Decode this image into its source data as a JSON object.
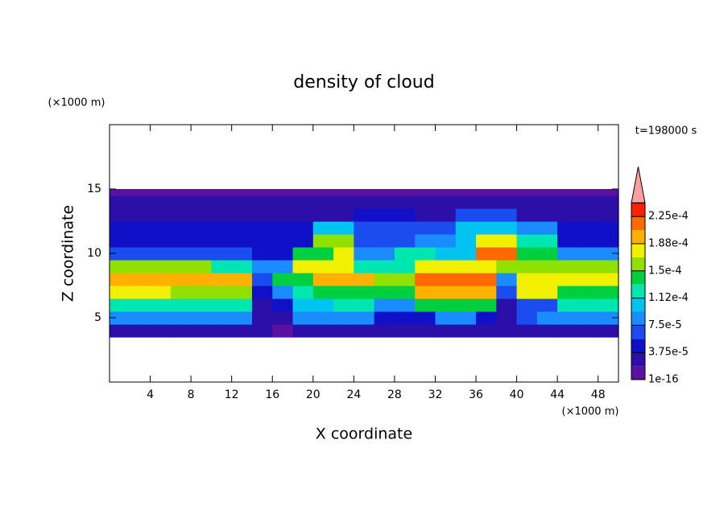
{
  "chart_data": {
    "type": "contour",
    "title": "density of cloud",
    "xlabel": "X coordinate",
    "ylabel": "Z coordinate",
    "xunit": "(×1000 m)",
    "yunit": "(×1000 m)",
    "time_label": "t=198000 s",
    "xlim": [
      0,
      50
    ],
    "ylim": [
      0,
      20
    ],
    "xticks": [
      4,
      8,
      12,
      16,
      20,
      24,
      28,
      32,
      36,
      40,
      44,
      48
    ],
    "yticks": [
      5,
      10,
      15
    ],
    "x": [
      0,
      2,
      4,
      6,
      8,
      10,
      12,
      14,
      16,
      18,
      20,
      22,
      24,
      26,
      28,
      30,
      32,
      34,
      36,
      38,
      40,
      42,
      44,
      46,
      48,
      50
    ],
    "z": [
      3.5,
      4.5,
      5.5,
      6.5,
      7.5,
      8.5,
      9.5,
      10.5,
      11.5,
      12.5,
      13.5,
      14.5,
      15
    ],
    "values": [
      [
        3e-05,
        3e-05,
        3e-05,
        3e-05,
        3e-05,
        3e-05,
        3e-05,
        2e-05,
        1e-05,
        2e-05,
        2e-05,
        2e-05,
        2e-05,
        2e-05,
        2e-05,
        3e-05,
        3e-05,
        3e-05,
        3e-05,
        2e-05,
        3e-05,
        3e-05,
        3e-05,
        3e-05,
        3e-05
      ],
      [
        9e-05,
        9e-05,
        9e-05,
        9e-05,
        9e-05,
        9e-05,
        9e-05,
        3e-05,
        3e-05,
        8e-05,
        9e-05,
        9e-05,
        9e-05,
        4e-05,
        4e-05,
        4e-05,
        9e-05,
        9e-05,
        5e-05,
        3e-05,
        6e-05,
        8e-05,
        9e-05,
        9e-05,
        9e-05
      ],
      [
        0.00012,
        0.00012,
        0.00012,
        0.00012,
        0.00012,
        0.00012,
        0.00012,
        3e-05,
        5e-05,
        0.0001,
        0.0001,
        0.00012,
        0.00012,
        8e-05,
        8e-05,
        0.00014,
        0.00014,
        0.00014,
        0.00014,
        3e-05,
        6e-05,
        6e-05,
        0.00012,
        0.00012,
        0.00012
      ],
      [
        0.00017,
        0.00017,
        0.00017,
        0.00016,
        0.00016,
        0.00016,
        0.00016,
        4e-05,
        8e-05,
        0.00012,
        0.00014,
        0.00014,
        0.00014,
        0.00014,
        0.00014,
        0.00019,
        0.00019,
        0.00019,
        0.00019,
        6e-05,
        0.00017,
        0.00017,
        0.00014,
        0.00014,
        0.00014
      ],
      [
        0.0002,
        0.0002,
        0.0002,
        0.0002,
        0.00019,
        0.00019,
        0.00019,
        6e-05,
        0.00014,
        0.00014,
        0.0002,
        0.0002,
        0.0002,
        0.00015,
        0.00015,
        0.00021,
        0.00021,
        0.00021,
        0.00021,
        8e-05,
        0.00018,
        0.00018,
        0.00018,
        0.00018,
        0.00018
      ],
      [
        0.00016,
        0.00016,
        0.00016,
        0.00016,
        0.00016,
        0.00013,
        0.00013,
        8e-05,
        8e-05,
        0.00017,
        0.00017,
        0.00017,
        0.00012,
        0.00012,
        0.00012,
        0.00018,
        0.00018,
        0.00018,
        0.00018,
        0.00016,
        0.00016,
        0.00015,
        0.00015,
        0.00015,
        0.00015
      ],
      [
        7e-05,
        7e-05,
        7e-05,
        7e-05,
        7e-05,
        7e-05,
        7e-05,
        5e-05,
        5e-05,
        0.00014,
        0.00014,
        0.00018,
        8e-05,
        8e-05,
        0.00012,
        0.00012,
        0.0001,
        0.0001,
        0.00022,
        0.00022,
        0.00014,
        0.00014,
        8e-05,
        8e-05,
        8e-05
      ],
      [
        5e-05,
        5e-05,
        5e-05,
        5e-05,
        5e-05,
        5e-05,
        5e-05,
        5e-05,
        5e-05,
        5e-05,
        0.00016,
        0.00016,
        7e-05,
        7e-05,
        7e-05,
        9e-05,
        9e-05,
        0.0001,
        0.00018,
        0.00018,
        0.00012,
        0.00012,
        5e-05,
        5e-05,
        5e-05
      ],
      [
        4e-05,
        4e-05,
        4e-05,
        4e-05,
        4e-05,
        4e-05,
        4e-05,
        4e-05,
        4e-05,
        4e-05,
        0.00011,
        0.00011,
        6e-05,
        6e-05,
        6e-05,
        6e-05,
        6e-05,
        0.0001,
        0.0001,
        0.0001,
        9e-05,
        9e-05,
        4e-05,
        4e-05,
        4e-05
      ],
      [
        3e-05,
        3e-05,
        3e-05,
        3e-05,
        3e-05,
        3e-05,
        3e-05,
        3e-05,
        3e-05,
        3e-05,
        3e-05,
        3e-05,
        4e-05,
        4e-05,
        4e-05,
        3e-05,
        3e-05,
        6e-05,
        6e-05,
        6e-05,
        3e-05,
        3e-05,
        3e-05,
        3e-05,
        3e-05
      ],
      [
        2e-05,
        2e-05,
        2e-05,
        2e-05,
        2e-05,
        2e-05,
        2e-05,
        2e-05,
        2e-05,
        2e-05,
        2e-05,
        2e-05,
        2e-05,
        2e-05,
        2e-05,
        2e-05,
        2e-05,
        2e-05,
        2e-05,
        2e-05,
        2e-05,
        2e-05,
        2e-05,
        2e-05,
        2e-05
      ],
      [
        1e-05,
        1e-05,
        1e-05,
        1e-05,
        1e-05,
        1e-05,
        1e-05,
        1e-05,
        1e-05,
        1e-05,
        1e-05,
        1e-05,
        1e-05,
        1e-05,
        1e-05,
        1e-05,
        1e-05,
        1e-05,
        1e-05,
        1e-05,
        1e-05,
        1e-05,
        1e-05,
        1e-05,
        1e-05
      ]
    ],
    "levels": [
      1e-16,
      1.875e-05,
      3.75e-05,
      5.625e-05,
      7.5e-05,
      9.375e-05,
      0.0001125,
      0.00013125,
      0.00015,
      0.00016875,
      0.0001875,
      0.00020625,
      0.000225,
      0.00024375
    ],
    "colors": [
      "#5a10a0",
      "#2c0fa8",
      "#1010c8",
      "#1a4cf0",
      "#1a8cff",
      "#00c4f0",
      "#00e6b0",
      "#00d040",
      "#90e000",
      "#f0f000",
      "#ffb000",
      "#ff6a00",
      "#ff2000"
    ],
    "extend_color": "#ffa0a0",
    "colorbar_ticks": [
      {
        "value": 1e-16,
        "label": "1e-16"
      },
      {
        "value": 3.75e-05,
        "label": "3.75e-5"
      },
      {
        "value": 7.5e-05,
        "label": "7.5e-5"
      },
      {
        "value": 0.0001125,
        "label": "1.12e-4"
      },
      {
        "value": 0.00015,
        "label": "1.5e-4"
      },
      {
        "value": 0.0001875,
        "label": "1.88e-4"
      },
      {
        "value": 0.000225,
        "label": "2.25e-4"
      }
    ]
  }
}
